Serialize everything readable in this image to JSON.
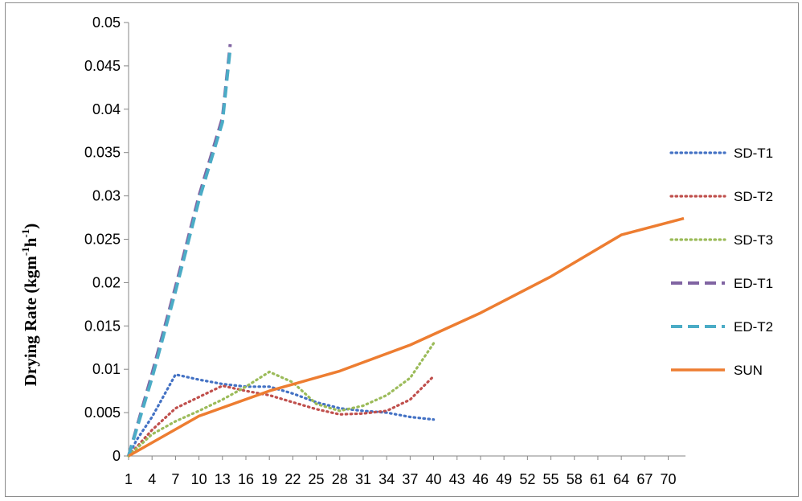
{
  "chart_data": {
    "type": "line",
    "title": "",
    "xlabel": "",
    "ylabel": "Drying Rate (kgm-1h-1)",
    "ylabel_parts": {
      "main": "Drying Rate (kgm",
      "sup1": "-1",
      "mid": "h",
      "sup2": "-1",
      "end": ")"
    },
    "xlim": [
      1,
      72
    ],
    "ylim": [
      0,
      0.05
    ],
    "ytick_values": [
      0,
      0.005,
      0.01,
      0.015,
      0.02,
      0.025,
      0.03,
      0.035,
      0.04,
      0.045,
      0.05
    ],
    "ytick_labels": [
      "0",
      "0.005",
      "0.01",
      "0.015",
      "0.02",
      "0.025",
      "0.03",
      "0.035",
      "0.04",
      "0.045",
      "0.05"
    ],
    "xtick_values": [
      1,
      4,
      7,
      10,
      13,
      16,
      19,
      22,
      25,
      28,
      31,
      34,
      37,
      40,
      43,
      46,
      49,
      52,
      55,
      58,
      61,
      64,
      67,
      70
    ],
    "xtick_labels": [
      "1",
      "4",
      "7",
      "10",
      "13",
      "16",
      "19",
      "22",
      "25",
      "28",
      "31",
      "34",
      "37",
      "40",
      "43",
      "46",
      "49",
      "52",
      "55",
      "58",
      "61",
      "64",
      "67",
      "70"
    ],
    "grid": false,
    "legend_position": "right",
    "series": [
      {
        "name": "SD-T1",
        "color": "#4472C4",
        "style": "dotted",
        "points": [
          [
            1,
            0
          ],
          [
            2,
            0.0018
          ],
          [
            4,
            0.0045
          ],
          [
            7,
            0.0094
          ],
          [
            10,
            0.0088
          ],
          [
            13,
            0.0083
          ],
          [
            16,
            0.008
          ],
          [
            19,
            0.008
          ],
          [
            22,
            0.0072
          ],
          [
            25,
            0.0062
          ],
          [
            28,
            0.0055
          ],
          [
            31,
            0.0052
          ],
          [
            34,
            0.005
          ],
          [
            37,
            0.0045
          ],
          [
            40,
            0.0042
          ]
        ]
      },
      {
        "name": "SD-T2",
        "color": "#C0504D",
        "style": "dotted",
        "points": [
          [
            1,
            0
          ],
          [
            4,
            0.003
          ],
          [
            7,
            0.0055
          ],
          [
            10,
            0.0068
          ],
          [
            13,
            0.0081
          ],
          [
            16,
            0.0075
          ],
          [
            19,
            0.007
          ],
          [
            22,
            0.0062
          ],
          [
            25,
            0.0054
          ],
          [
            28,
            0.0048
          ],
          [
            31,
            0.0049
          ],
          [
            34,
            0.0052
          ],
          [
            37,
            0.0065
          ],
          [
            40,
            0.0092
          ]
        ]
      },
      {
        "name": "SD-T3",
        "color": "#9BBB59",
        "style": "dotted",
        "points": [
          [
            1,
            0
          ],
          [
            4,
            0.0025
          ],
          [
            7,
            0.004
          ],
          [
            10,
            0.0052
          ],
          [
            13,
            0.0065
          ],
          [
            16,
            0.008
          ],
          [
            19,
            0.0097
          ],
          [
            22,
            0.0085
          ],
          [
            25,
            0.006
          ],
          [
            28,
            0.0052
          ],
          [
            31,
            0.0058
          ],
          [
            34,
            0.007
          ],
          [
            37,
            0.009
          ],
          [
            40,
            0.013
          ]
        ]
      },
      {
        "name": "ED-T1",
        "color": "#8064A2",
        "style": "dashed",
        "points": [
          [
            1,
            0
          ],
          [
            4,
            0.0095
          ],
          [
            7,
            0.0195
          ],
          [
            10,
            0.03
          ],
          [
            13,
            0.039
          ],
          [
            14,
            0.0475
          ]
        ]
      },
      {
        "name": "ED-T2",
        "color": "#4BACC6",
        "style": "dashed",
        "points": [
          [
            1,
            0
          ],
          [
            4,
            0.009
          ],
          [
            7,
            0.019
          ],
          [
            10,
            0.0295
          ],
          [
            13,
            0.0385
          ],
          [
            14,
            0.047
          ]
        ]
      },
      {
        "name": "SUN",
        "color": "#ED7D31",
        "style": "solid",
        "points": [
          [
            1,
            0
          ],
          [
            10,
            0.0046
          ],
          [
            19,
            0.0075
          ],
          [
            28,
            0.0098
          ],
          [
            37,
            0.0128
          ],
          [
            46,
            0.0165
          ],
          [
            55,
            0.0207
          ],
          [
            64,
            0.0255
          ],
          [
            72,
            0.0274
          ]
        ]
      }
    ]
  }
}
